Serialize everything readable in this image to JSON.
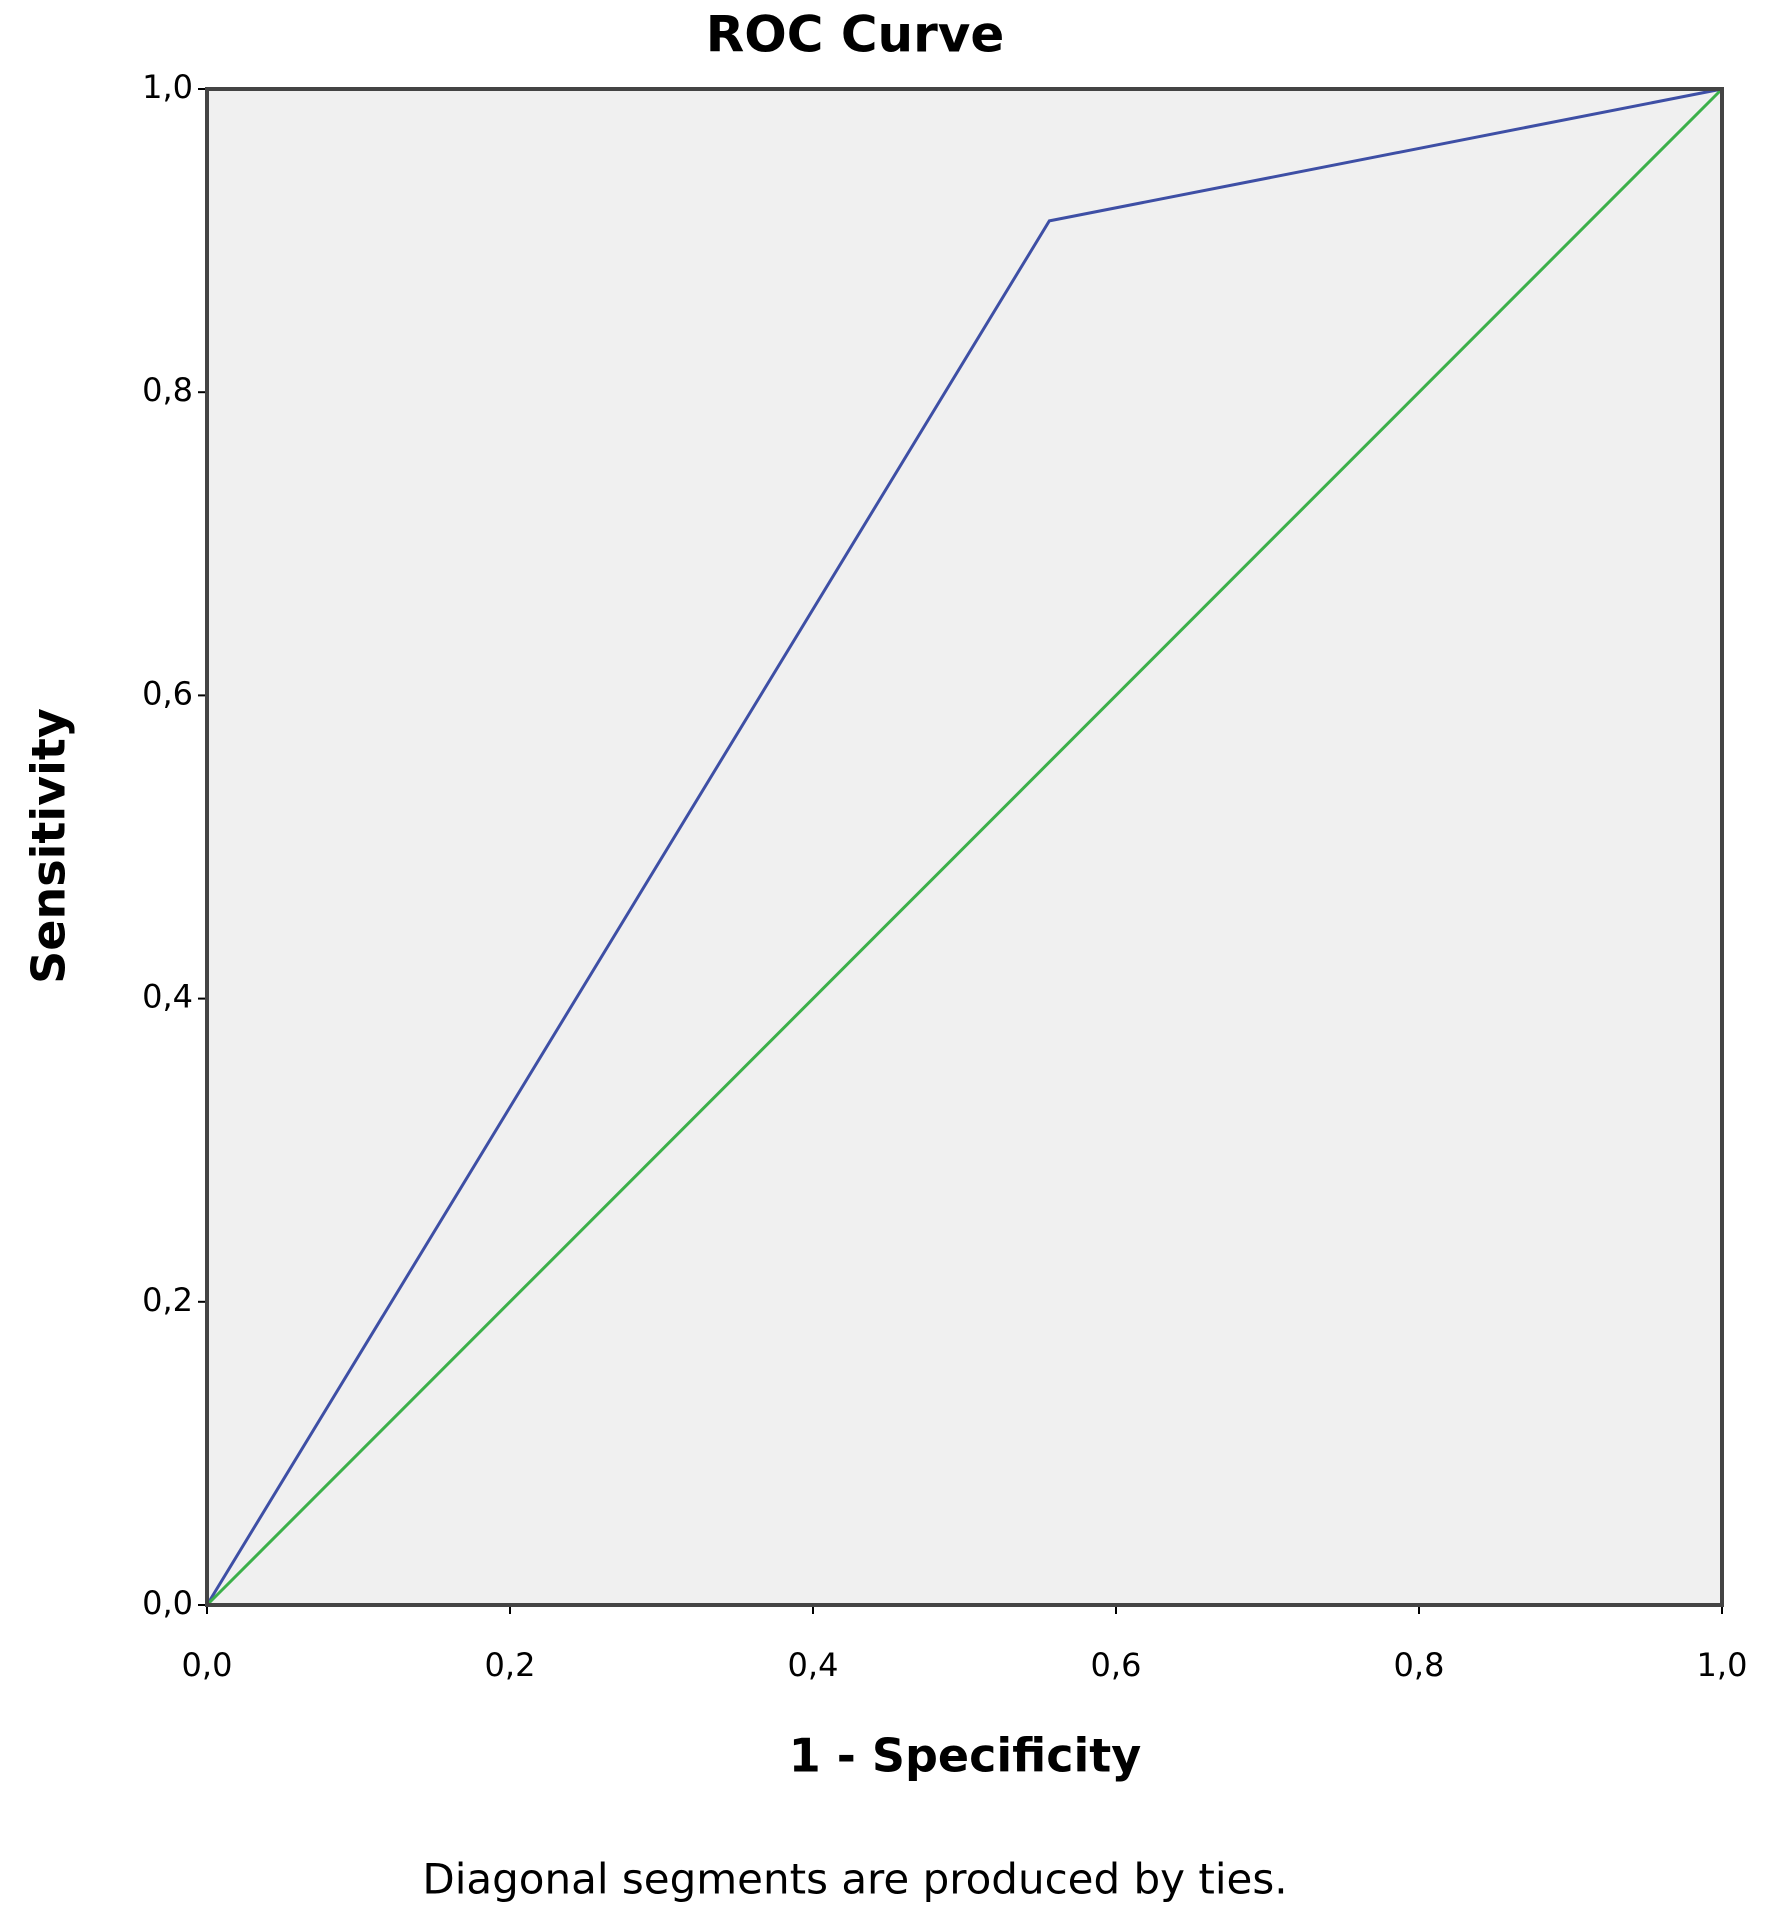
{
  "chart_data": {
    "type": "line",
    "title": "ROC Curve",
    "xlabel": "1 - Specificity",
    "ylabel": "Sensitivity",
    "footnote": "Diagonal segments are produced by ties.",
    "background": "#f0f0f0",
    "series": [
      {
        "color": "#3e4fa5",
        "x": [
          0,
          0.556,
          1
        ],
        "values": [
          0,
          0.913,
          1
        ]
      },
      {
        "color": "#3cb04a",
        "x": [
          0,
          1
        ],
        "values": [
          0,
          1
        ]
      }
    ],
    "xlim": [
      0,
      1
    ],
    "ylim": [
      0,
      1
    ],
    "xticks": [
      {
        "value": 0,
        "label": "0,0"
      },
      {
        "value": 0.2,
        "label": "0,2"
      },
      {
        "value": 0.4,
        "label": "0,4"
      },
      {
        "value": 0.6,
        "label": "0,6"
      },
      {
        "value": 0.8,
        "label": "0,8"
      },
      {
        "value": 1,
        "label": "1,0"
      }
    ],
    "yticks": [
      {
        "value": 0,
        "label": "0,0"
      },
      {
        "value": 0.2,
        "label": "0,2"
      },
      {
        "value": 0.4,
        "label": "0,4"
      },
      {
        "value": 0.6,
        "label": "0,6"
      },
      {
        "value": 0.8,
        "label": "0,8"
      },
      {
        "value": 1,
        "label": "1,0"
      }
    ]
  }
}
